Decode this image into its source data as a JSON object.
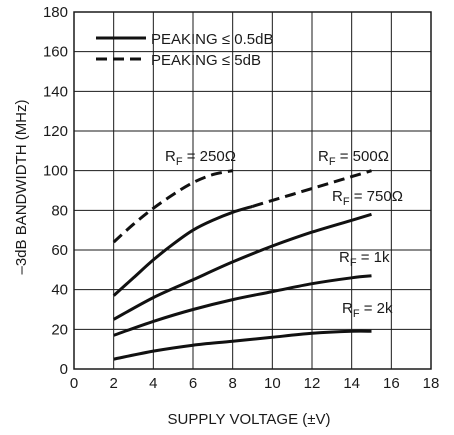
{
  "chart_data": {
    "type": "line",
    "title": "",
    "xlabel": "SUPPLY VOLTAGE (±V)",
    "ylabel": "–3dB BANDWIDTH (MHz)",
    "xlim": [
      0,
      18
    ],
    "ylim": [
      0,
      180
    ],
    "x_ticks": [
      "0",
      "2",
      "4",
      "6",
      "8",
      "10",
      "12",
      "14",
      "16",
      "18"
    ],
    "y_ticks": [
      "0",
      "20",
      "40",
      "60",
      "80",
      "100",
      "120",
      "140",
      "160",
      "180"
    ],
    "grid": true,
    "legend": {
      "placement": "top-left",
      "entries": [
        {
          "label": "PEAKING ≤ 0.5dB",
          "style": "solid"
        },
        {
          "label": "PEAKING ≤ 5dB",
          "style": "dashed"
        }
      ]
    },
    "series": [
      {
        "label_main": "R",
        "label_sub": "F",
        "label_rest": " = 250Ω",
        "style": "dashed",
        "x": [
          2,
          3,
          4,
          5,
          6,
          7,
          8
        ],
        "y": [
          64,
          73,
          81,
          88,
          94,
          98,
          100
        ]
      },
      {
        "label_main": "R",
        "label_sub": "F",
        "label_rest": " = 500Ω",
        "style": "solid",
        "x": [
          2,
          3,
          4,
          5,
          6,
          7,
          8,
          9
        ],
        "y": [
          37,
          46,
          55,
          63,
          70,
          75,
          79,
          82
        ]
      },
      {
        "label_main": "",
        "label_sub": "",
        "label_rest": "",
        "style": "dashed",
        "x": [
          9,
          10,
          11,
          12,
          13,
          14,
          15
        ],
        "y": [
          82,
          85,
          88,
          91,
          94,
          97,
          100
        ]
      },
      {
        "label_main": "R",
        "label_sub": "F",
        "label_rest": " = 750Ω",
        "style": "solid",
        "x": [
          2,
          4,
          6,
          8,
          10,
          12,
          14,
          15
        ],
        "y": [
          25,
          36,
          45,
          54,
          62,
          69,
          75,
          78
        ]
      },
      {
        "label_main": "R",
        "label_sub": "F",
        "label_rest": " = 1k",
        "style": "solid",
        "x": [
          2,
          4,
          6,
          8,
          10,
          12,
          14,
          15
        ],
        "y": [
          17,
          24,
          30,
          35,
          39,
          43,
          46,
          47
        ]
      },
      {
        "label_main": "R",
        "label_sub": "F",
        "label_rest": " = 2k",
        "style": "solid",
        "x": [
          2,
          4,
          6,
          8,
          10,
          12,
          14,
          15
        ],
        "y": [
          5,
          9,
          12,
          14,
          16,
          18,
          19,
          19
        ]
      }
    ]
  }
}
